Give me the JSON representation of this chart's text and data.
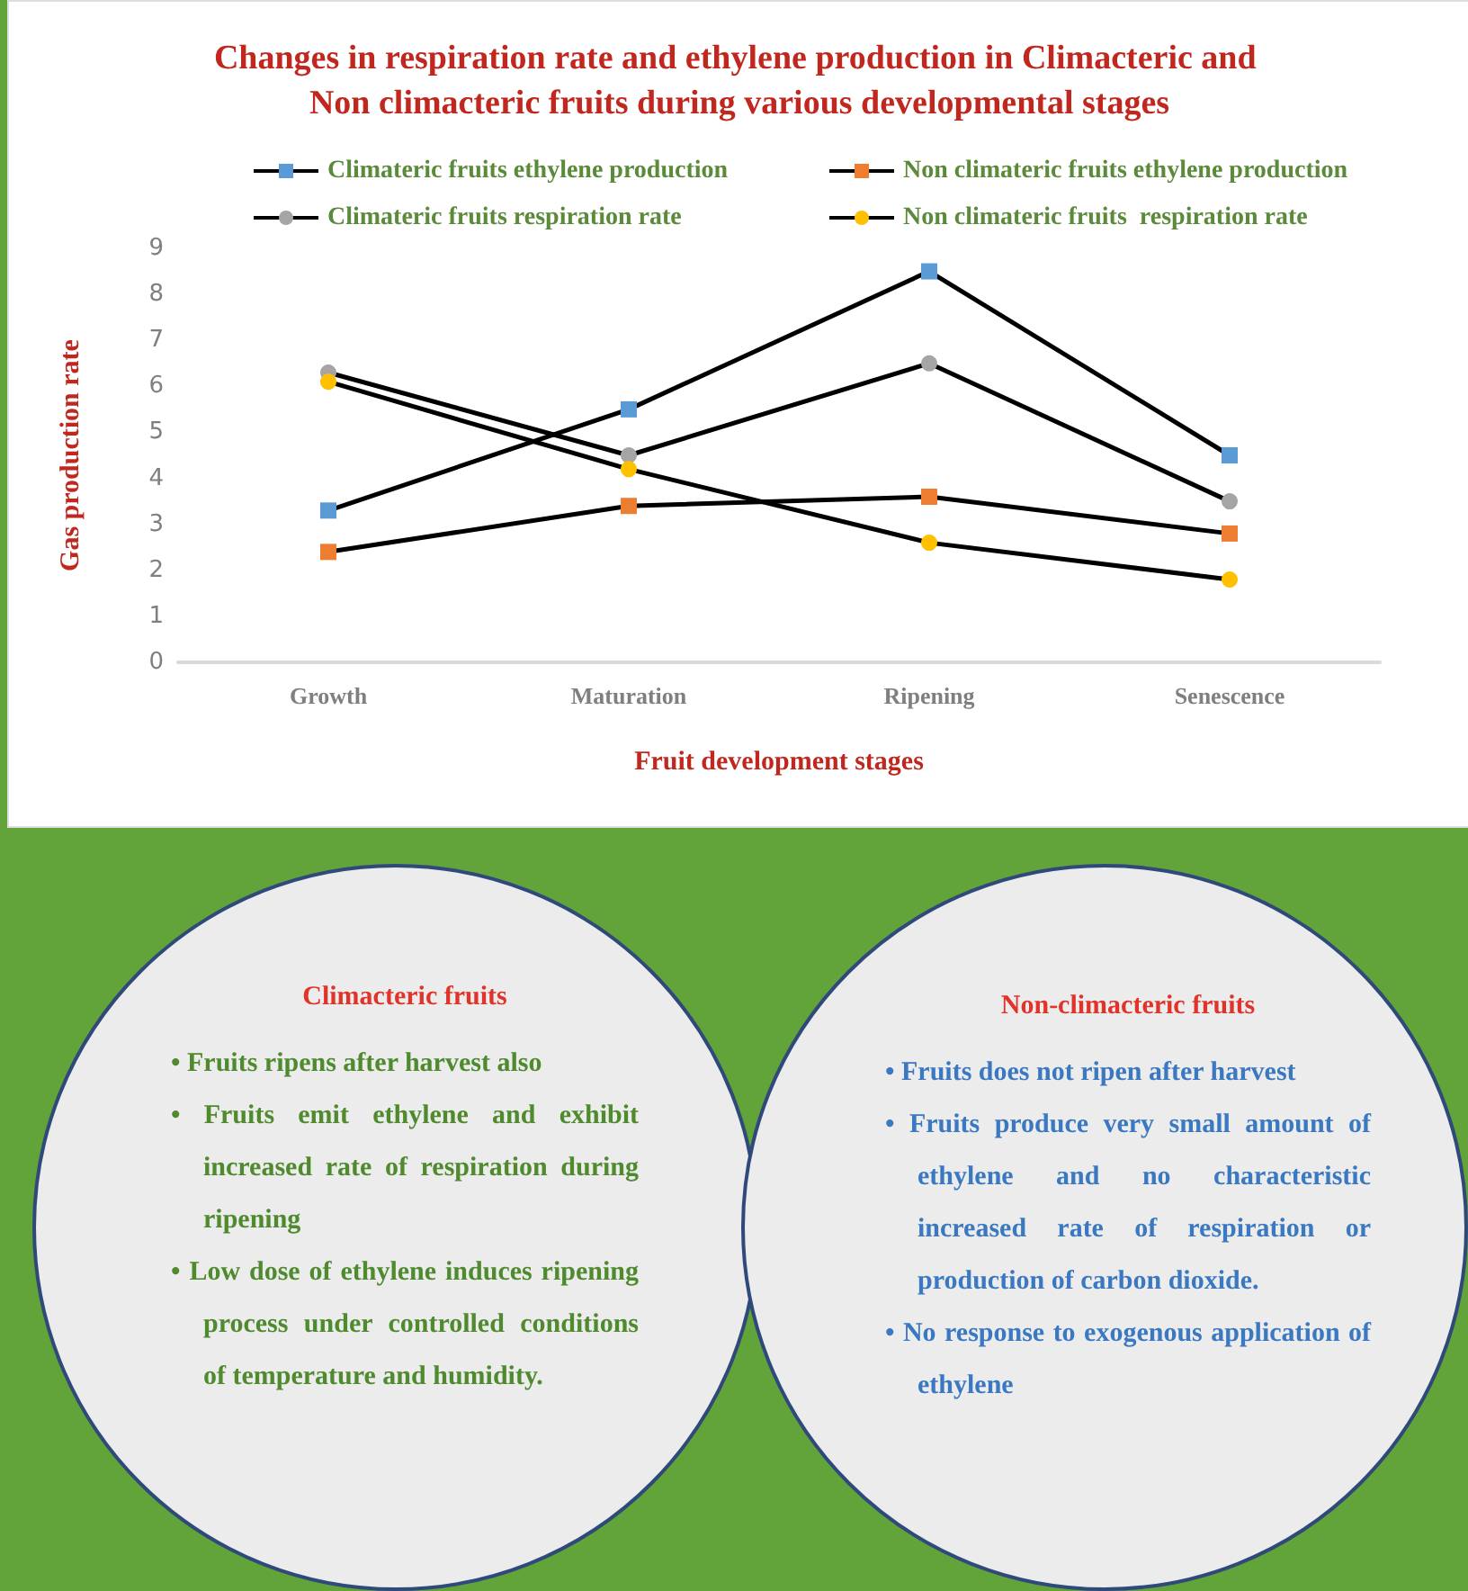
{
  "chart_data": {
    "type": "line",
    "title": "Changes in respiration rate and ethylene production in Climacteric and Non climacteric fruits during various developmental stages",
    "xlabel": "Fruit development stages",
    "ylabel": "Gas production rate",
    "categories": [
      "Growth",
      "Maturation",
      "Ripening",
      "Senescence"
    ],
    "series": [
      {
        "name": "Climateric fruits ethylene production",
        "color": "#5b9bd5",
        "marker": "square",
        "values": [
          3.3,
          5.5,
          8.5,
          4.5
        ]
      },
      {
        "name": "Climateric fruits respiration rate",
        "color": "#a5a5a5",
        "marker": "circle",
        "values": [
          6.3,
          4.5,
          6.5,
          3.5
        ]
      },
      {
        "name": "Non climateric fruits ethylene production",
        "color": "#ed7d31",
        "marker": "square",
        "values": [
          2.4,
          3.4,
          3.6,
          2.8
        ]
      },
      {
        "name": "Non climateric fruits  respiration rate",
        "color": "#ffc000",
        "marker": "circle",
        "values": [
          6.1,
          4.2,
          2.6,
          1.8
        ]
      }
    ],
    "ylim": [
      0,
      9
    ],
    "yticks": [
      0,
      1,
      2,
      3,
      4,
      5,
      6,
      7,
      8,
      9
    ],
    "grid": false,
    "legend": "top",
    "annotations": [
      "Climacteric fruits",
      "• Fruits ripens after harvest also",
      "• Fruits emit ethylene and exhibit increased rate of respiration during ripening",
      "• Low dose of ethylene induces ripening process under controlled conditions of temperature and humidity.",
      "Non-climacteric fruits",
      "• Fruits does not ripen after harvest",
      "• Fruits produce very small amount of ethylene and no characteristic increased rate of respiration or production of carbon dioxide.",
      "• No response to exogenous application of ethylene"
    ]
  }
}
